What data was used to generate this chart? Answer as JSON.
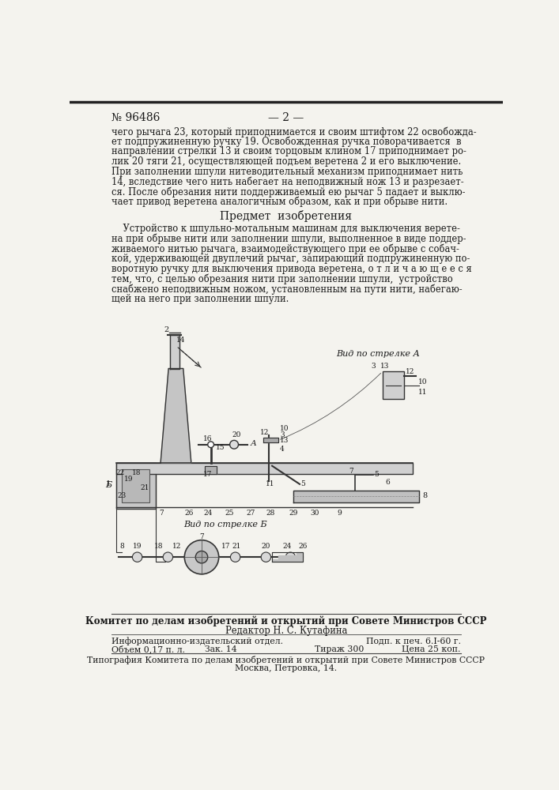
{
  "patent_number": "№ 96486",
  "page_number": "— 2 —",
  "bg_color": "#f4f3ee",
  "text_color": "#1a1a1a",
  "top_text_lines": [
    "чего рычага 23, который приподнимается и своим штифтом 22 освобожда-",
    "ет подпружиненную ручку 19. Освобожденная ручка поворачивается  в",
    "направлении стрелки 13 и своим торцовым клином 17 приподнимает ро-",
    "лик 20 тяги 21, осуществляющей подъем веретена 2 и его выключение.",
    "При заполнении шпули нитеводительный механизм приподнимает нить",
    "14, вследствие чего нить набегает на неподвижный нож 13 и разрезает-",
    "ся. После обрезания нити поддерживаемый ею рычаг 5 падает и выклю-",
    "чает привод веретена аналогичным образом, как и при обрыве нити."
  ],
  "section_title": "Предмет  изобретения",
  "claim_lines": [
    "    Устройство к шпульно-мотальным машинам для выключения верете-",
    "на при обрыве нити или заполнении шпули, выполненное в виде поддер-",
    "живаемого нитью рычага, взаимодействующего при ее обрыве с собач-",
    "кой, удерживающей двуплечий рычаг, запирающий подпружиненную по-",
    "воротную ручку для выключения привода веретена, о т л и ч а ю щ е е с я",
    "тем, что, с целью обрезания нити при заполнении шпули,  устройство",
    "снабжено неподвижным ножом, установленным на пути нити, набегаю-",
    "щей на него при заполнении шпули."
  ],
  "bottom_bold": "Комитет по делам изобретений и открытий при Совете Министров СССР",
  "bottom_editor": "Редактор Н. С. Кутафина",
  "bottom_info_dept": "Информационно-издательский отдел.",
  "bottom_podp": "Подп. к печ. 6.I-60 г.",
  "bottom_volume": "Объем 0,17 п. л.",
  "bottom_zak": "Зак. 14",
  "bottom_tirazh": "Тираж 300",
  "bottom_price": "Цена 25 коп.",
  "bottom_tipografia": "Типография Комитета по делам изобретений и открытий при Совете Министров СССР",
  "bottom_address": "Москва, Петровка, 14.",
  "line_color": "#444444"
}
